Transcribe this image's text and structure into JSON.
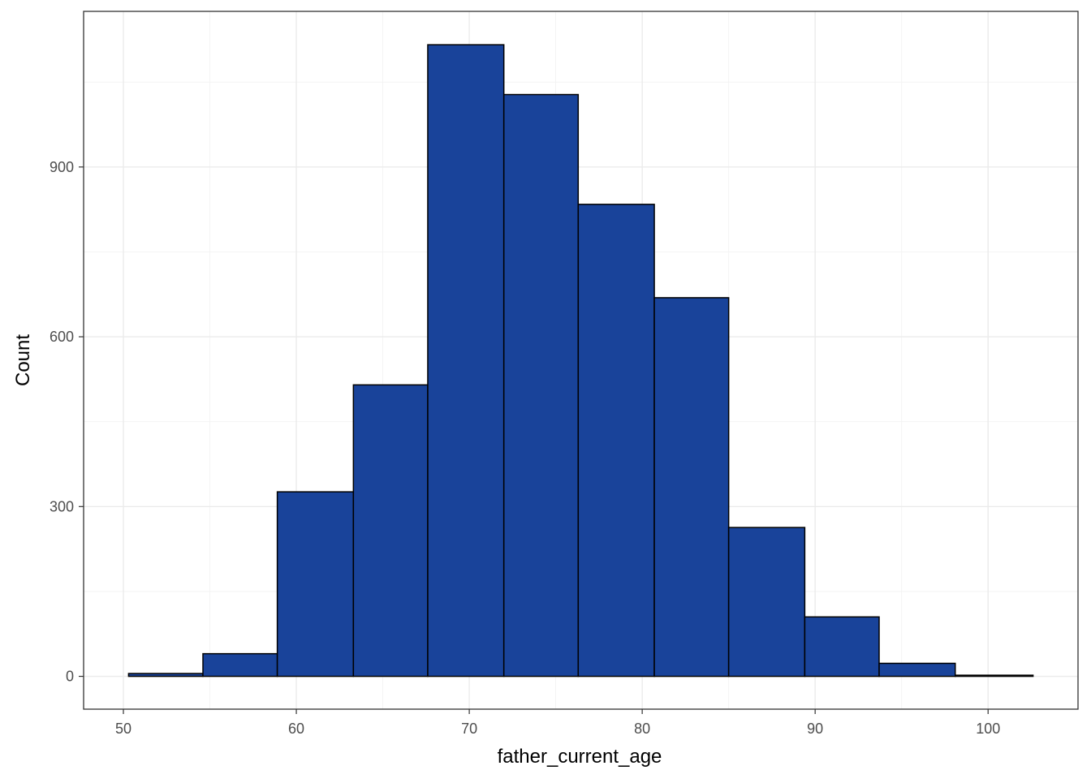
{
  "chart_data": {
    "type": "bar",
    "subtype": "histogram",
    "title": "",
    "xlabel": "father_current_age",
    "ylabel": "Count",
    "bins": [
      {
        "x0": 50.3,
        "x1": 54.6,
        "count": 5
      },
      {
        "x0": 54.6,
        "x1": 58.9,
        "count": 40
      },
      {
        "x0": 58.9,
        "x1": 63.3,
        "count": 326
      },
      {
        "x0": 63.3,
        "x1": 67.6,
        "count": 515
      },
      {
        "x0": 67.6,
        "x1": 72.0,
        "count": 1116
      },
      {
        "x0": 72.0,
        "x1": 76.3,
        "count": 1028
      },
      {
        "x0": 76.3,
        "x1": 80.7,
        "count": 834
      },
      {
        "x0": 80.7,
        "x1": 85.0,
        "count": 669
      },
      {
        "x0": 85.0,
        "x1": 89.4,
        "count": 263
      },
      {
        "x0": 89.4,
        "x1": 93.7,
        "count": 105
      },
      {
        "x0": 93.7,
        "x1": 98.1,
        "count": 23
      },
      {
        "x0": 98.1,
        "x1": 102.6,
        "count": 2
      }
    ],
    "xlim": [
      47.7,
      105.2
    ],
    "ylim": [
      -58,
      1175
    ],
    "x_ticks": [
      50,
      60,
      70,
      80,
      90,
      100
    ],
    "x_tick_labels": [
      "50",
      "60",
      "70",
      "80",
      "90",
      "100"
    ],
    "x_minor_ticks": [
      55,
      65,
      75,
      85,
      95
    ],
    "y_ticks": [
      0,
      300,
      600,
      900
    ],
    "y_tick_labels": [
      "0",
      "300",
      "600",
      "900"
    ],
    "y_minor_ticks": [
      150,
      450,
      750,
      1050
    ],
    "grid": true,
    "legend": "none",
    "colors": {
      "bar_fill": "#19439a",
      "bar_outline": "#000000",
      "background": "#ffffff",
      "grid_major": "#ebebeb",
      "grid_minor": "#f2f2f2",
      "panel_border": "#333333"
    }
  }
}
